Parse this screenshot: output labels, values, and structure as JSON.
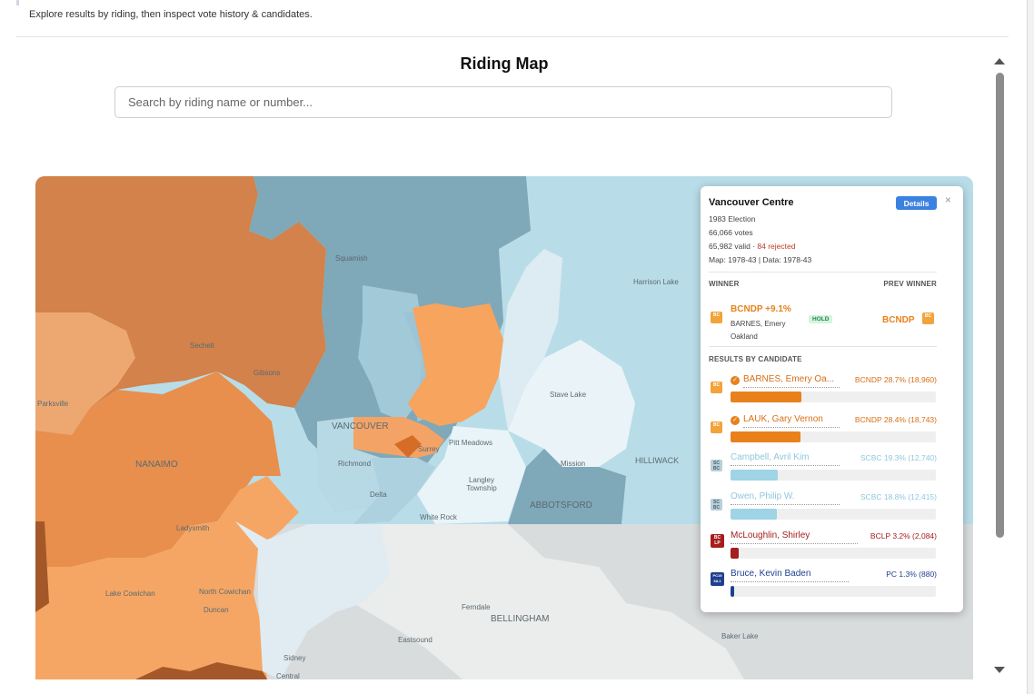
{
  "header": {
    "subtitle": "Explore results by riding, then inspect vote history & candidates."
  },
  "map_section": {
    "title": "Riding Map",
    "search": {
      "placeholder": "Search by riding name or number...",
      "value": ""
    },
    "place_labels": [
      "Squamish",
      "Sechelt",
      "Gibsons",
      "Parksville",
      "NANAIMO",
      "Ladysmith",
      "North Cowichan",
      "Duncan",
      "Lake Cowichan",
      "VANCOUVER",
      "Richmond",
      "Delta",
      "Surrey",
      "Pitt Meadows",
      "Langley Township",
      "White Rock",
      "Mission",
      "HILLIWACK",
      "ABBOTSFORD",
      "Stave Lake",
      "Harrison Lake",
      "Ferndale",
      "BELLINGHAM",
      "Eastsound",
      "Sidney",
      "Central",
      "Baker Lake"
    ]
  },
  "popup": {
    "riding": "Vancouver Centre",
    "election": "1983 Election",
    "votes": "66,066 votes",
    "valid": "65,982 valid",
    "separator": " · ",
    "rejected": "84 rejected",
    "map_data": "Map: 1978-43 | Data: 1978-43",
    "details_label": "Details",
    "close_glyph": "×",
    "winner_heading": "WINNER",
    "prev_winner_heading": "PREV WINNER",
    "winner_party_margin": "BCNDP +9.1%",
    "winner_name": "BARNES, Emery Oakland",
    "hold_badge": "HOLD",
    "prev_winner_party": "BCNDP",
    "results_heading": "RESULTS BY CANDIDATE",
    "candidates": [
      {
        "name": "BARNES, Emery Oa...",
        "share": "BCNDP 28.7% (18,960)",
        "pct": 28.7,
        "color": "#e8811b",
        "icon": "BC",
        "elected": true
      },
      {
        "name": "LAUK, Gary Vernon",
        "share": "BCNDP 28.4% (18,743)",
        "pct": 28.4,
        "color": "#e8811b",
        "icon": "BC",
        "elected": true
      },
      {
        "name": "Campbell, Avril Kim",
        "share": "SCBC 19.3% (12,740)",
        "pct": 19.3,
        "color": "#9fd3e6",
        "icon": "SC BC",
        "elected": false
      },
      {
        "name": "Owen, Philip W.",
        "share": "SCBC 18.8% (12,415)",
        "pct": 18.8,
        "color": "#9fd3e6",
        "icon": "SC BC",
        "elected": false
      },
      {
        "name": "McLoughlin, Shirley",
        "share": "BCLP 3.2% (2,084)",
        "pct": 3.2,
        "color": "#a51d1d",
        "icon": "BC LP",
        "elected": false
      },
      {
        "name": "Bruce, Kevin Baden",
        "share": "PC 1.3% (880)",
        "pct": 1.3,
        "color": "#1f3f8f",
        "icon": "PC",
        "elected": false
      }
    ]
  },
  "colors": {
    "ndp": "#e8811b",
    "socred": "#9fd3e6",
    "liberal": "#a51d1d",
    "pc": "#1f3f8f",
    "accent": "#3b82e0"
  }
}
